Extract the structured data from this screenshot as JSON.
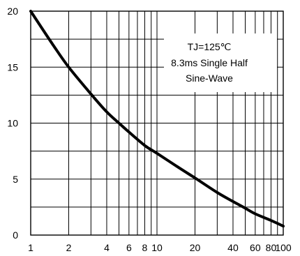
{
  "chart_data": {
    "type": "line",
    "title": "",
    "xlabel": "",
    "ylabel": "",
    "xscale": "log",
    "xlim": [
      1,
      100
    ],
    "ylim": [
      0,
      20
    ],
    "grid": true,
    "x_ticks": [
      {
        "value": 1,
        "label": "1"
      },
      {
        "value": 2,
        "label": "2"
      },
      {
        "value": 4,
        "label": "4"
      },
      {
        "value": 6,
        "label": "6"
      },
      {
        "value": 8,
        "label": "8"
      },
      {
        "value": 10,
        "label": "10"
      },
      {
        "value": 20,
        "label": "20"
      },
      {
        "value": 40,
        "label": "40"
      },
      {
        "value": 60,
        "label": "60"
      },
      {
        "value": 80,
        "label": "80"
      },
      {
        "value": 100,
        "label": "100"
      }
    ],
    "y_ticks": [
      {
        "value": 0,
        "label": "0"
      },
      {
        "value": 5,
        "label": "5"
      },
      {
        "value": 10,
        "label": "10"
      },
      {
        "value": 15,
        "label": "15"
      },
      {
        "value": 20,
        "label": "20"
      }
    ],
    "series": [
      {
        "color": "#000000",
        "x": [
          1,
          1.5,
          2,
          3,
          4,
          5,
          6,
          8,
          10,
          15,
          20,
          30,
          40,
          50,
          60,
          80,
          100
        ],
        "y": [
          20,
          17,
          15,
          12.6,
          11,
          10,
          9.2,
          8,
          7.3,
          6,
          5.1,
          3.8,
          3,
          2.4,
          1.9,
          1.3,
          0.8
        ]
      }
    ],
    "annotation": {
      "lines": [
        "TJ=125℃",
        "8.3ms Single Half",
        "Sine-Wave"
      ]
    }
  }
}
